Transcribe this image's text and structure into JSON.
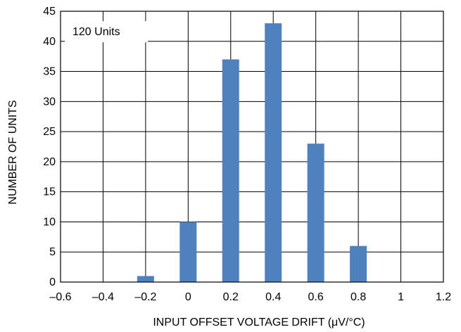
{
  "chart_data": {
    "type": "bar",
    "x": [
      -0.2,
      0,
      0.2,
      0.4,
      0.6,
      0.8
    ],
    "values": [
      1,
      10,
      37,
      43,
      23,
      6
    ],
    "xlabel": "INPUT OFFSET VOLTAGE DRIFT (μV/°C)",
    "ylabel": "NUMBER OF UNITS",
    "xlim": [
      -0.6,
      1.2
    ],
    "ylim": [
      0,
      45
    ],
    "xticks": [
      -0.6,
      -0.4,
      -0.2,
      0,
      0.2,
      0.4,
      0.6,
      0.8,
      1,
      1.2
    ],
    "yticks": [
      0,
      5,
      10,
      15,
      20,
      25,
      30,
      35,
      40,
      45
    ],
    "xtick_labels": [
      "–0.6",
      "–0.4",
      "–0.2",
      "0",
      "0.2",
      "0.4",
      "0.6",
      "0.8",
      "1",
      "1.2"
    ],
    "ytick_labels": [
      "0",
      "5",
      "10",
      "15",
      "20",
      "25",
      "30",
      "35",
      "40",
      "45"
    ],
    "grid": true,
    "bar_color": "#4f81bd",
    "annotation": "120 Units"
  }
}
